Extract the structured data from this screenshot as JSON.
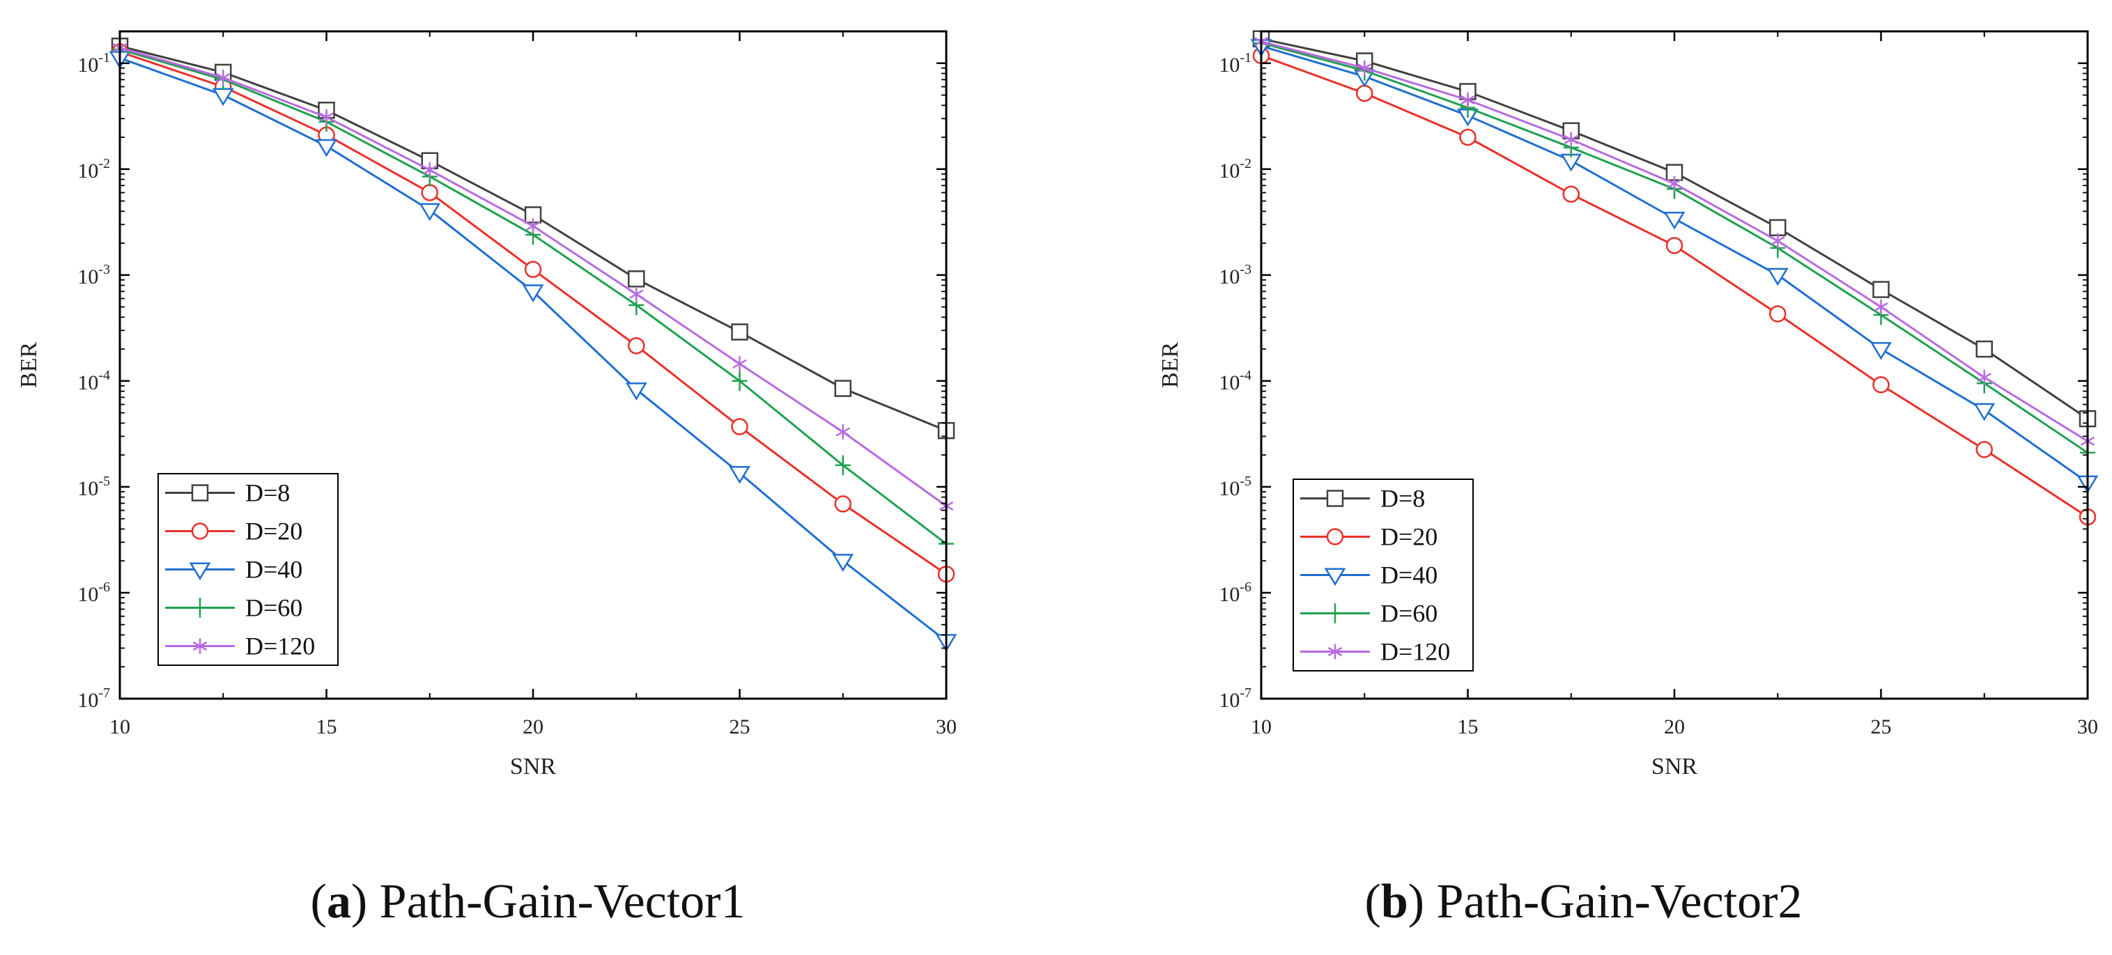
{
  "figure": {
    "panels": [
      {
        "label": "(",
        "tag": "a",
        "close": ")",
        "title": "Path-Gain-Vector1"
      },
      {
        "label": "(",
        "tag": "b",
        "close": ")",
        "title": "Path-Gain-Vector2"
      }
    ]
  },
  "chart_data": [
    {
      "type": "line",
      "title": "Path-Gain-Vector1",
      "xlabel": "SNR",
      "ylabel": "BER",
      "yscale": "log",
      "xlim": [
        10,
        30
      ],
      "ylim": [
        1e-07,
        0.2
      ],
      "xticks": [
        10,
        15,
        20,
        25,
        30
      ],
      "yticks": [
        {
          "base": "10",
          "exp": "-1",
          "value": 0.1
        },
        {
          "base": "10",
          "exp": "-2",
          "value": 0.01
        },
        {
          "base": "10",
          "exp": "-3",
          "value": 0.001
        },
        {
          "base": "10",
          "exp": "-4",
          "value": 0.0001
        },
        {
          "base": "10",
          "exp": "-5",
          "value": 1e-05
        },
        {
          "base": "10",
          "exp": "-6",
          "value": 1e-06
        },
        {
          "base": "10",
          "exp": "-7",
          "value": 1e-07
        }
      ],
      "legend_position": "bottom-left",
      "x": [
        10,
        12.5,
        15,
        17.5,
        20,
        22.5,
        25,
        27.5,
        30
      ],
      "series": [
        {
          "name": "D=8",
          "marker": "square",
          "color": "#404040",
          "values": [
            0.145,
            0.082,
            0.036,
            0.012,
            0.0037,
            0.00092,
            0.00029,
            8.5e-05,
            3.4e-05
          ]
        },
        {
          "name": "D=20",
          "marker": "circle",
          "color": "#e8302a",
          "values": [
            0.128,
            0.06,
            0.021,
            0.006,
            0.00113,
            0.000215,
            3.7e-05,
            6.9e-06,
            1.5e-06
          ]
        },
        {
          "name": "D=40",
          "marker": "triangle-down",
          "color": "#1f6fd1",
          "values": [
            0.112,
            0.05,
            0.0165,
            0.0041,
            0.0007,
            8.3e-05,
            1.35e-05,
            2e-06,
            3.5e-07
          ]
        },
        {
          "name": "D=60",
          "marker": "plus",
          "color": "#20a050",
          "values": [
            0.135,
            0.07,
            0.028,
            0.0085,
            0.0024,
            0.00052,
            0.0001,
            1.6e-05,
            2.9e-06
          ]
        },
        {
          "name": "D=120",
          "marker": "asterisk",
          "color": "#b86ae0",
          "values": [
            0.14,
            0.073,
            0.031,
            0.0098,
            0.0029,
            0.00066,
            0.000145,
            3.3e-05,
            6.6e-06
          ]
        }
      ]
    },
    {
      "type": "line",
      "title": "Path-Gain-Vector2",
      "xlabel": "SNR",
      "ylabel": "BER",
      "yscale": "log",
      "xlim": [
        10,
        30
      ],
      "ylim": [
        1e-07,
        0.2
      ],
      "xticks": [
        10,
        15,
        20,
        25,
        30
      ],
      "yticks": [
        {
          "base": "10",
          "exp": "-1",
          "value": 0.1
        },
        {
          "base": "10",
          "exp": "-2",
          "value": 0.01
        },
        {
          "base": "10",
          "exp": "-3",
          "value": 0.001
        },
        {
          "base": "10",
          "exp": "-4",
          "value": 0.0001
        },
        {
          "base": "10",
          "exp": "-5",
          "value": 1e-05
        },
        {
          "base": "10",
          "exp": "-6",
          "value": 1e-06
        },
        {
          "base": "10",
          "exp": "-7",
          "value": 1e-07
        }
      ],
      "legend_position": "bottom-left",
      "x": [
        10,
        12.5,
        15,
        17.5,
        20,
        22.5,
        25,
        27.5,
        30
      ],
      "series": [
        {
          "name": "D=8",
          "marker": "square",
          "color": "#404040",
          "values": [
            0.17,
            0.105,
            0.054,
            0.023,
            0.0093,
            0.0028,
            0.00073,
            0.0002,
            4.4e-05
          ]
        },
        {
          "name": "D=20",
          "marker": "circle",
          "color": "#e8302a",
          "values": [
            0.118,
            0.052,
            0.02,
            0.0058,
            0.0019,
            0.00043,
            9.2e-05,
            2.25e-05,
            5.2e-06
          ]
        },
        {
          "name": "D=40",
          "marker": "triangle-down",
          "color": "#1f6fd1",
          "values": [
            0.145,
            0.075,
            0.032,
            0.012,
            0.0034,
            0.001,
            0.0002,
            5.3e-05,
            1.1e-05
          ]
        },
        {
          "name": "D=60",
          "marker": "plus",
          "color": "#20a050",
          "values": [
            0.155,
            0.085,
            0.038,
            0.016,
            0.0065,
            0.0018,
            0.00042,
            9.5e-05,
            2.1e-05
          ]
        },
        {
          "name": "D=120",
          "marker": "asterisk",
          "color": "#b86ae0",
          "values": [
            0.16,
            0.09,
            0.045,
            0.019,
            0.0073,
            0.0021,
            0.0005,
            0.000108,
            2.7e-05
          ]
        }
      ]
    }
  ]
}
